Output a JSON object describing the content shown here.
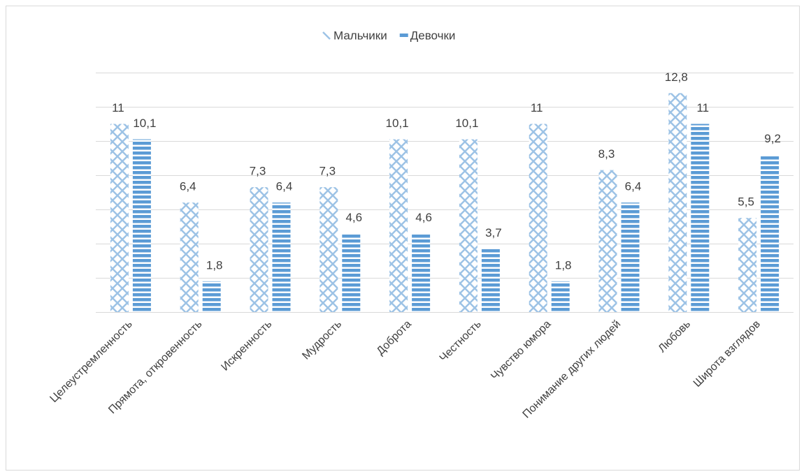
{
  "chart_data": {
    "type": "bar",
    "categories": [
      "Целеустремленность",
      "Прямота, откровенность",
      "Искренность",
      "Мудрость",
      "Доброта",
      "Честность",
      "Чувство юмора",
      "Понимание других людей",
      "Любовь",
      "Широта взглядов"
    ],
    "series": [
      {
        "name": "Мальчики",
        "color": "#9dc3e6",
        "pattern": "crosshatch",
        "values": [
          11,
          6.4,
          7.3,
          7.3,
          10.1,
          10.1,
          11,
          8.3,
          12.8,
          5.5
        ],
        "value_labels": [
          "11",
          "6,4",
          "7,3",
          "7,3",
          "10,1",
          "10,1",
          "11",
          "8,3",
          "12,8",
          "5,5"
        ]
      },
      {
        "name": "Девочки",
        "color": "#5b9bd5",
        "pattern": "horizontal",
        "values": [
          10.1,
          1.8,
          6.4,
          4.6,
          4.6,
          3.7,
          1.8,
          6.4,
          11,
          9.2
        ],
        "value_labels": [
          "10,1",
          "1,8",
          "6,4",
          "4,6",
          "4,6",
          "3,7",
          "1,8",
          "6,4",
          "11",
          "9,2"
        ]
      }
    ],
    "ylim": [
      0,
      14
    ],
    "yticks": [
      0,
      2,
      4,
      6,
      8,
      10,
      12,
      14
    ],
    "grid": true,
    "legend": "top"
  }
}
